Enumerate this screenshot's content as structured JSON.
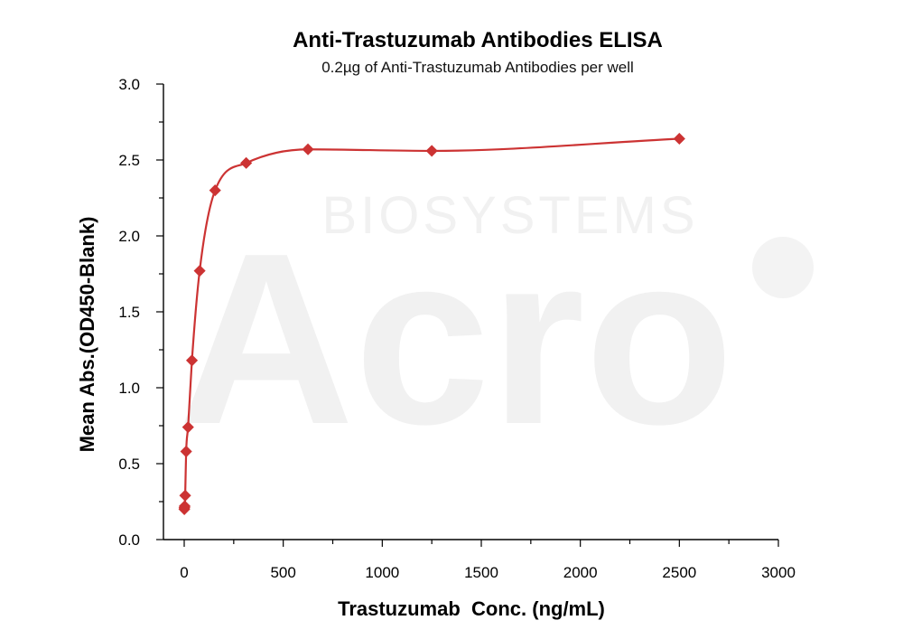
{
  "watermark": {
    "line1": "BIOSYSTEMS",
    "line2": "Acro"
  },
  "chart_data": {
    "type": "scatter",
    "title": "Anti-Trastuzumab Antibodies ELISA",
    "subtitle": "0.2µg of Anti-Trastuzumab Antibodies per well",
    "xlabel": "Trastuzumab  Conc. (ng/mL)",
    "ylabel": "Mean Abs.(OD450-Blank)",
    "xlim": [
      0,
      3000
    ],
    "ylim": [
      0.0,
      3.0
    ],
    "x_ticks": [
      0,
      500,
      1000,
      1500,
      2000,
      2500,
      3000
    ],
    "x_tick_labels": [
      "0",
      "500",
      "1000",
      "1500",
      "2000",
      "2500",
      "3000"
    ],
    "y_ticks": [
      0.0,
      0.5,
      1.0,
      1.5,
      2.0,
      2.5,
      3.0
    ],
    "y_tick_labels": [
      "0.0",
      "0.5",
      "1.0",
      "1.5",
      "2.0",
      "2.5",
      "3.0"
    ],
    "grid": false,
    "legend": "none",
    "color": "#cc3333",
    "marker": "diamond",
    "fit_curve": "4PL",
    "series": [
      {
        "x": [
          0.6,
          1.2,
          2.4,
          4.9,
          9.8,
          19.5,
          39,
          78,
          156,
          313,
          625,
          1250,
          2500
        ],
        "y": [
          0.2,
          0.21,
          0.22,
          0.29,
          0.58,
          0.74,
          1.18,
          1.77,
          2.3,
          2.48,
          2.57,
          2.56,
          2.64
        ]
      }
    ]
  }
}
